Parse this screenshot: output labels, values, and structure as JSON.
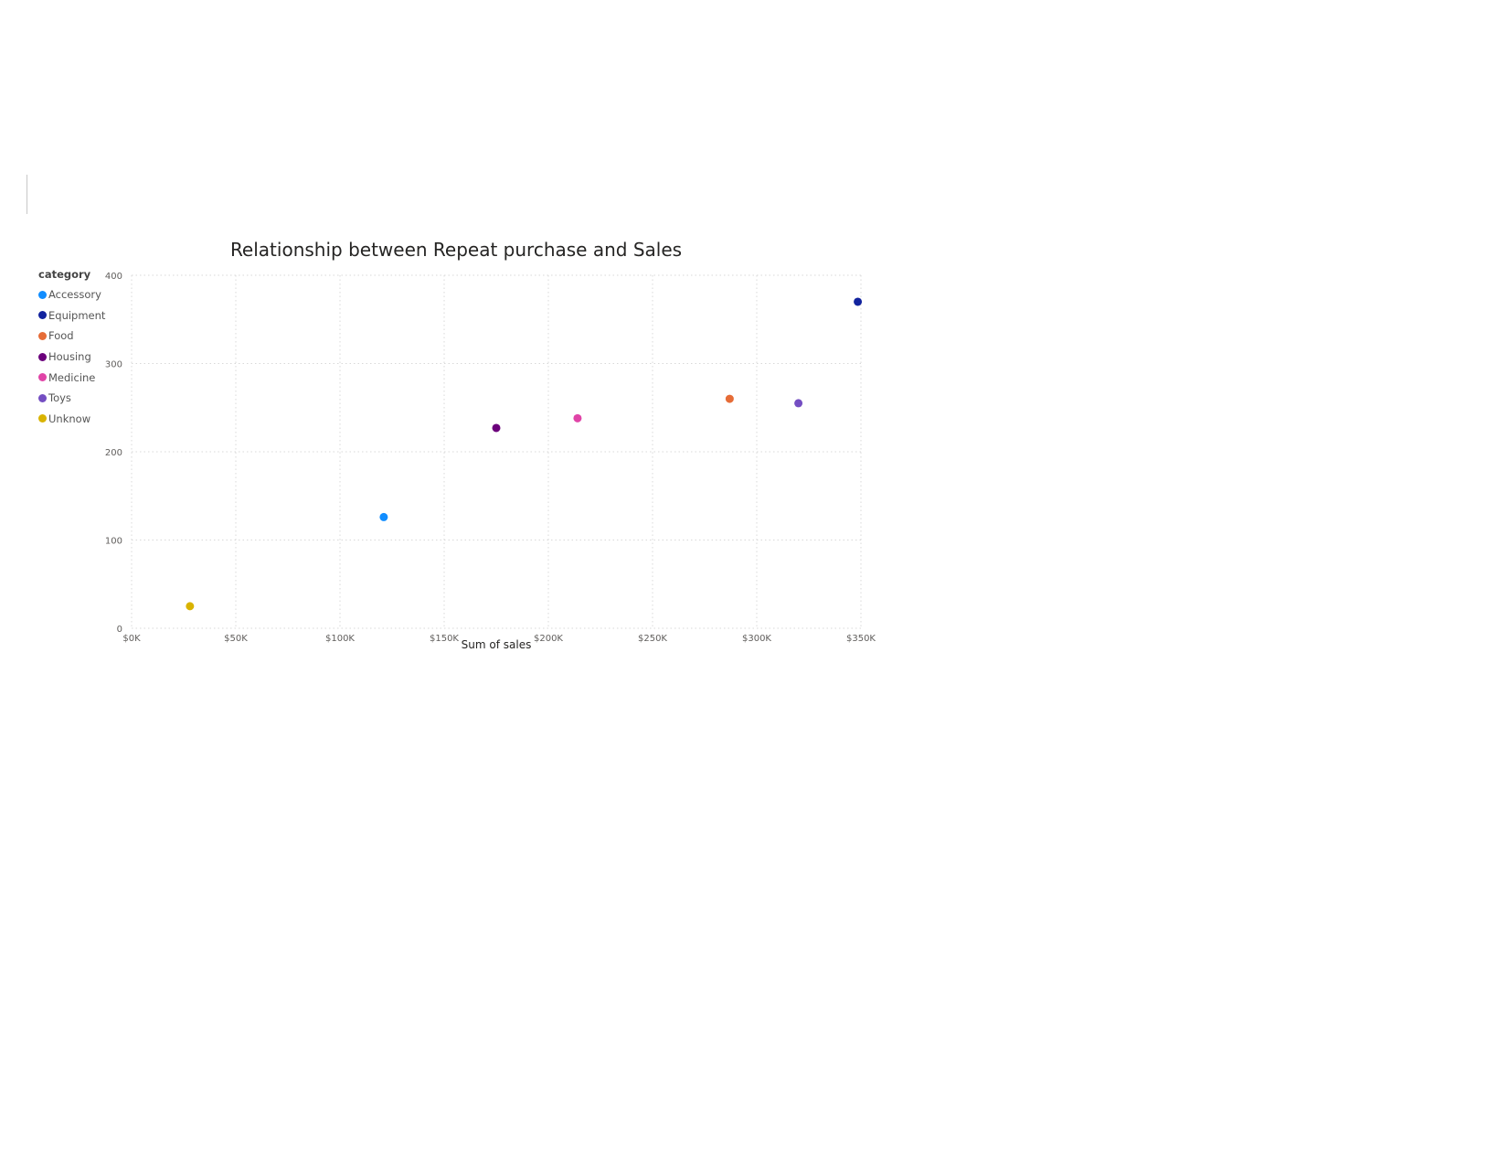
{
  "chart_data": {
    "type": "scatter",
    "title": "Relationship between Repeat purchase and Sales",
    "xlabel": "Sum of sales",
    "ylabel": "",
    "xlim": [
      0,
      350000
    ],
    "ylim": [
      0,
      400
    ],
    "x_ticks": [
      0,
      50000,
      100000,
      150000,
      200000,
      250000,
      300000,
      350000
    ],
    "x_tick_labels": [
      "$0K",
      "$50K",
      "$100K",
      "$150K",
      "$200K",
      "$250K",
      "$300K",
      "$350K"
    ],
    "y_ticks": [
      0,
      100,
      200,
      300,
      400
    ],
    "y_tick_labels": [
      "0",
      "100",
      "200",
      "300",
      "400"
    ],
    "grid": true,
    "legend_title": "category",
    "legend_position": "left",
    "series": [
      {
        "name": "Accessory",
        "color": "#118DFF",
        "x": 121000,
        "y": 126
      },
      {
        "name": "Equipment",
        "color": "#12239E",
        "x": 348500,
        "y": 370
      },
      {
        "name": "Food",
        "color": "#E66C37",
        "x": 287000,
        "y": 260
      },
      {
        "name": "Housing",
        "color": "#6B007B",
        "x": 175000,
        "y": 227
      },
      {
        "name": "Medicine",
        "color": "#E044A7",
        "x": 214000,
        "y": 238
      },
      {
        "name": "Toys",
        "color": "#744EC2",
        "x": 320000,
        "y": 255
      },
      {
        "name": "Unknow",
        "color": "#D9B300",
        "x": 28000,
        "y": 25
      }
    ]
  }
}
